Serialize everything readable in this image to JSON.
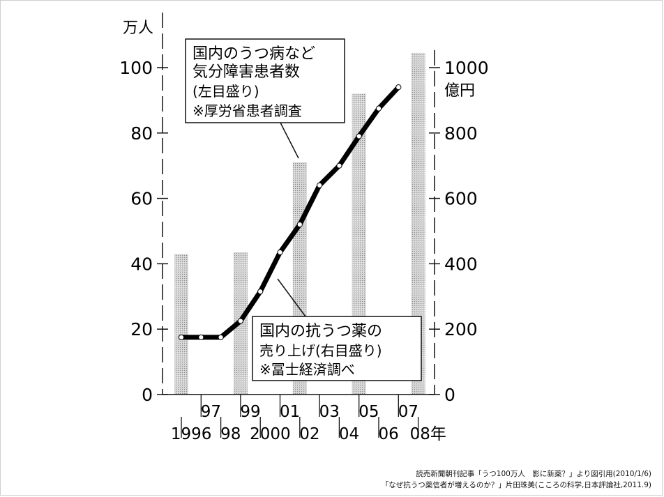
{
  "colors": {
    "line": "#000000",
    "bar": "#c9c9c9",
    "frame": "#cfcfcf"
  },
  "chart_data": {
    "type": "bar+line",
    "left_unit": "万人",
    "right_unit_top": "1000",
    "right_unit": "億円",
    "left_ticks": [
      "0",
      "20",
      "40",
      "60",
      "80",
      "100"
    ],
    "right_ticks": [
      "0",
      "200",
      "400",
      "600",
      "800"
    ],
    "x_labels_upper": [
      "97",
      "99",
      "01",
      "03",
      "05",
      "07"
    ],
    "x_labels_lower": [
      "1996",
      "98",
      "2000",
      "02",
      "04",
      "06",
      "08年"
    ],
    "left_ylim": [
      0,
      100
    ],
    "right_ylim": [
      0,
      1000
    ],
    "categories": [
      "1996",
      "1997",
      "1998",
      "1999",
      "2000",
      "2001",
      "2002",
      "2003",
      "2004",
      "2005",
      "2006",
      "2007",
      "2008"
    ],
    "bars": {
      "axis": "right",
      "label": "国内の抗うつ薬の売り上げ(右目盛り)",
      "x": [
        "1996",
        "1999",
        "2002",
        "2005",
        "2008"
      ],
      "values": [
        430,
        435,
        710,
        920,
        1045
      ]
    },
    "line": {
      "axis": "left",
      "label": "国内のうつ病など気分障害患者数(左目盛り)",
      "x": [
        "1996",
        "1997",
        "1998",
        "1999",
        "2000",
        "2001",
        "2002",
        "2003",
        "2004",
        "2005",
        "2006",
        "2007"
      ],
      "values": [
        17.5,
        17.5,
        17.5,
        22.5,
        31.5,
        43.5,
        52.0,
        64.0,
        70.0,
        79.0,
        87.5,
        94.0
      ]
    },
    "annotations": {
      "patients": [
        "国内のうつ病など",
        "気分障害患者数",
        "(左目盛り)",
        "※厚労省患者調査"
      ],
      "sales": [
        "国内の抗うつ薬の",
        "売り上げ(右目盛り)",
        "※冨士経済調べ"
      ]
    }
  },
  "source_lines": [
    "読売新聞朝刊記事「うつ100万人　影に新薬？」より図引用(2010/1/6)",
    "「なぜ抗うつ薬信者が増えるのか？」片田珠美(こころの科学,日本評論社,2011.9)"
  ]
}
